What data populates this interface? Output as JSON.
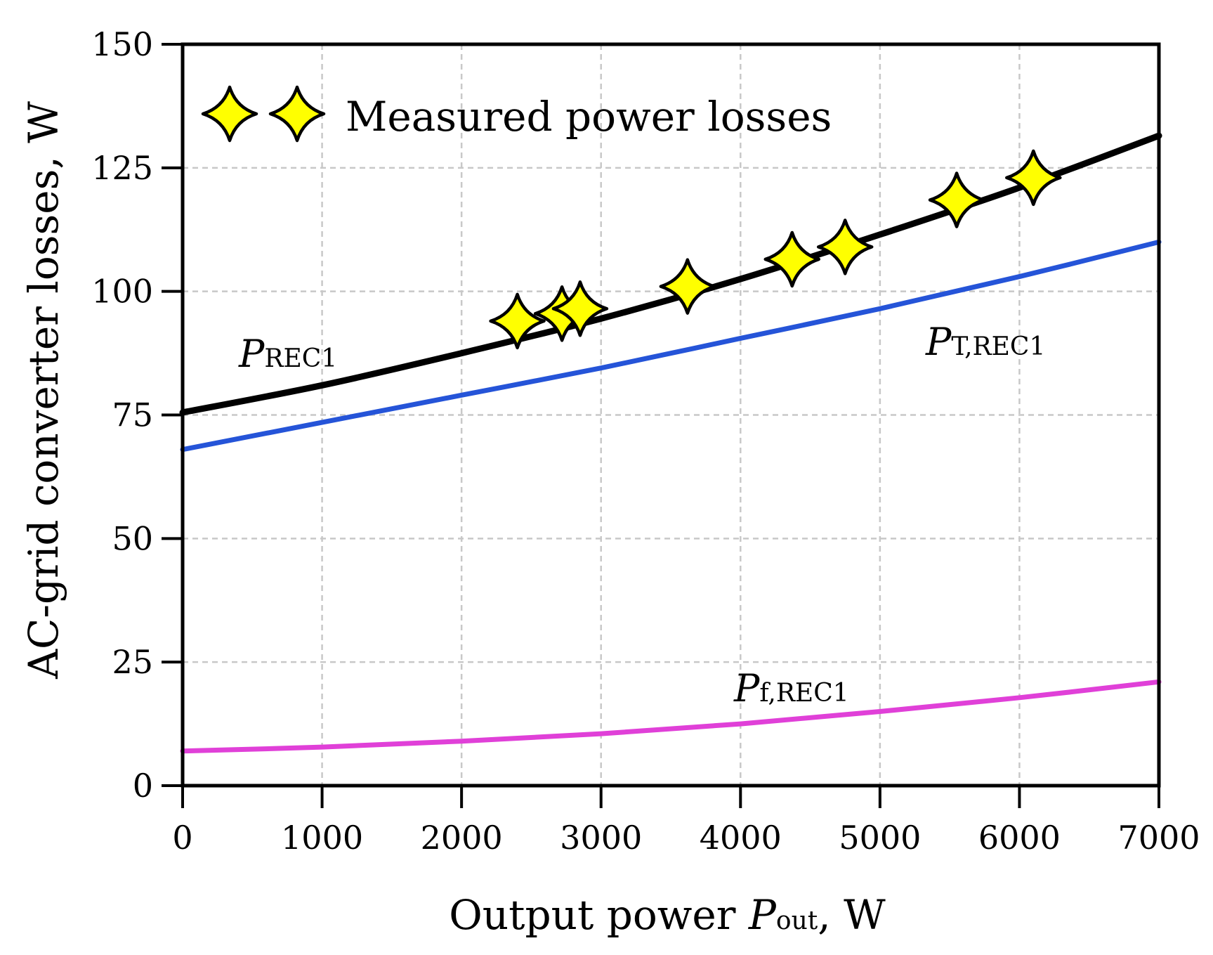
{
  "chart_data": {
    "type": "line",
    "xlabel": {
      "text": "Output power ",
      "var": "P",
      "sub": "out",
      "unit": ", W"
    },
    "ylabel": "AC-grid converter losses, W",
    "xlim": [
      0,
      7000
    ],
    "ylim": [
      0,
      150
    ],
    "xticks": [
      0,
      1000,
      2000,
      3000,
      4000,
      5000,
      6000,
      7000
    ],
    "yticks": [
      0,
      25,
      50,
      75,
      100,
      125,
      150
    ],
    "grid": true,
    "legend_position": "top-left",
    "series": [
      {
        "name": "P_REC1",
        "label_main": "P",
        "label_sub": "REC1",
        "color": "#000000",
        "x": [
          0,
          1000,
          2000,
          3000,
          4000,
          5000,
          6000,
          7000
        ],
        "y": [
          75.5,
          81,
          87.5,
          94.5,
          102.5,
          111.5,
          121,
          131.5
        ]
      },
      {
        "name": "P_T,REC1",
        "label_main": "P",
        "label_sub": "T,REC1",
        "color": "#2554d8",
        "x": [
          0,
          1000,
          2000,
          3000,
          4000,
          5000,
          6000,
          7000
        ],
        "y": [
          68,
          73.5,
          79,
          84.5,
          90.5,
          96.5,
          103,
          110
        ]
      },
      {
        "name": "P_f,REC1",
        "label_main": "P",
        "label_sub": "f,REC1",
        "color": "#e040d8",
        "x": [
          0,
          1000,
          2000,
          3000,
          4000,
          5000,
          6000,
          7000
        ],
        "y": [
          7,
          7.8,
          9,
          10.5,
          12.5,
          15,
          17.8,
          21
        ]
      }
    ],
    "scatter": {
      "name": "Measured power losses",
      "color": "#ffff00",
      "points": [
        {
          "x": 2400,
          "y": 94
        },
        {
          "x": 2720,
          "y": 95.5
        },
        {
          "x": 2850,
          "y": 96.5
        },
        {
          "x": 3620,
          "y": 101
        },
        {
          "x": 4370,
          "y": 106.5
        },
        {
          "x": 4750,
          "y": 109
        },
        {
          "x": 5550,
          "y": 118.5
        },
        {
          "x": 6100,
          "y": 123
        }
      ]
    }
  }
}
